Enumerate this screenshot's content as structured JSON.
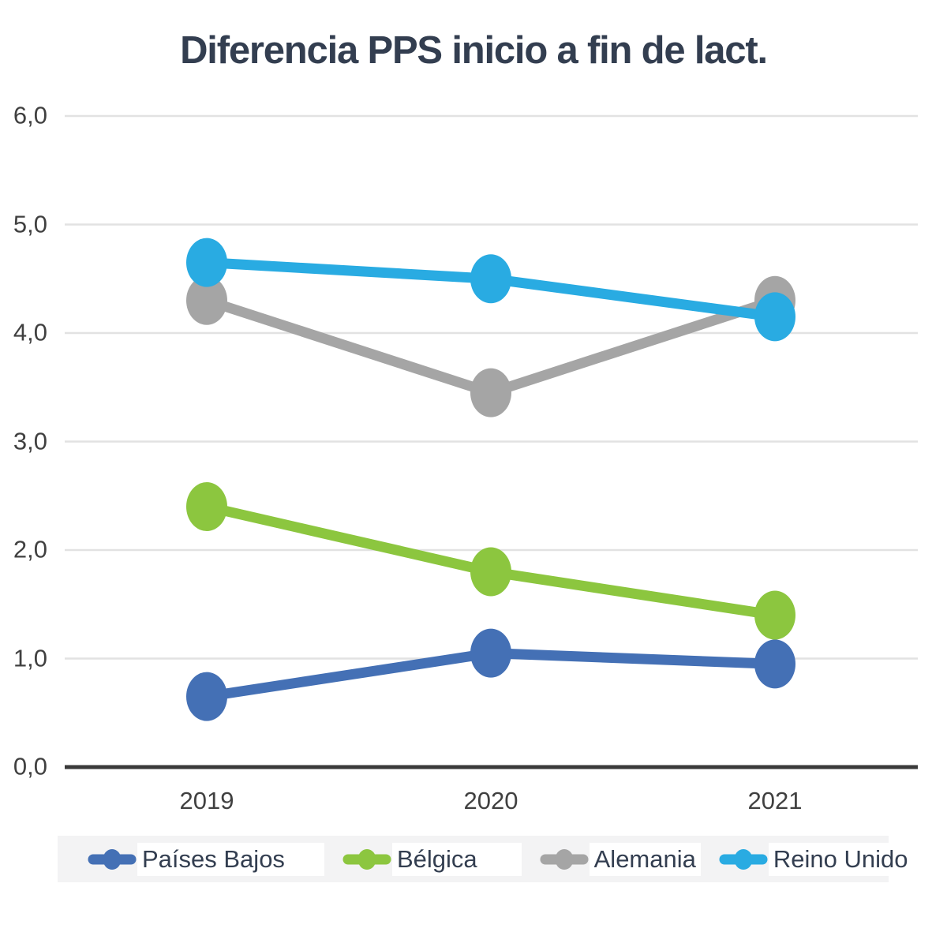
{
  "title": "Diferencia PPS inicio a fin de lact.",
  "chart_data": {
    "type": "line",
    "title": "Diferencia PPS inicio a fin de lact.",
    "categories": [
      "2019",
      "2020",
      "2021"
    ],
    "series": [
      {
        "name": "Países Bajos",
        "color": "#4470B5",
        "values": [
          0.65,
          1.05,
          0.95
        ]
      },
      {
        "name": "Bélgica",
        "color": "#8CC63F",
        "values": [
          2.4,
          1.8,
          1.4
        ]
      },
      {
        "name": "Alemania",
        "color": "#A5A5A5",
        "values": [
          4.3,
          3.45,
          4.3
        ]
      },
      {
        "name": "Reino Unido",
        "color": "#29ABE2",
        "values": [
          4.65,
          4.5,
          4.15
        ]
      }
    ],
    "ylim": [
      0,
      6
    ],
    "y_ticks_top_to_bottom": [
      "6,0",
      "5,0",
      "4,0",
      "3,0",
      "2,0",
      "1,0",
      "0,0"
    ],
    "xlabel": "",
    "ylabel": "",
    "grid": true,
    "gridline_color": "#E2E2E2",
    "zero_axis_color": "#3A3A3A",
    "tick_text_color": "#404040",
    "title_color": "#333E50",
    "legend_position": "bottom",
    "legend_background": "#F3F3F4",
    "legend_entry_background": "#FFFFFF"
  }
}
